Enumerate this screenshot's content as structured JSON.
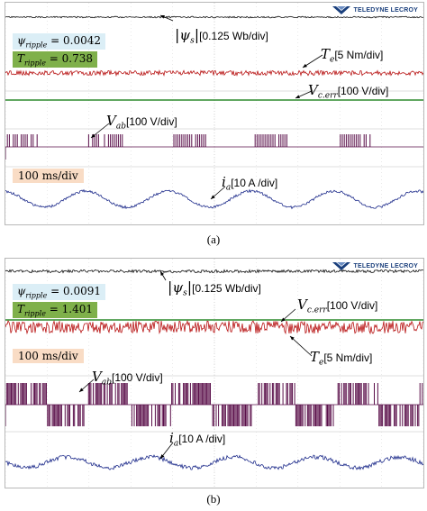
{
  "brand": "TELEDYNE LECROY",
  "panel_a": {
    "psi_ripple_label": "ψ",
    "psi_ripple_sub": "ripple",
    "psi_ripple_value": "= 0.0042",
    "t_ripple_label": "T",
    "t_ripple_sub": "ripple",
    "t_ripple_value": "= 0.738",
    "timebase": "100 ms/div",
    "psi_label": "ψ",
    "psi_sub": "s",
    "psi_scale": "[0.125 Wb/div]",
    "te_label": "T",
    "te_sub": "e",
    "te_scale": "[5 Nm/div]",
    "verr_label": "V",
    "verr_sub": "c.err",
    "verr_scale": "[100 V/div]",
    "vab_label": "V",
    "vab_sub": "ab",
    "vab_scale": "[100 V/div]",
    "ia_label": "i",
    "ia_sub": "a",
    "ia_scale": "[10 A /div]",
    "caption": "(a)"
  },
  "panel_b": {
    "psi_ripple_label": "ψ",
    "psi_ripple_sub": "ripple",
    "psi_ripple_value": "= 0.0091",
    "t_ripple_label": "T",
    "t_ripple_sub": "ripple",
    "t_ripple_value": "= 1.401",
    "timebase": "100 ms/div",
    "psi_label": "ψ",
    "psi_sub": "s",
    "psi_scale": "[0.125 Wb/div]",
    "te_label": "T",
    "te_sub": "e",
    "te_scale": "[5 Nm/div]",
    "verr_label": "V",
    "verr_sub": "c.err",
    "verr_scale": "[100 V/div]",
    "vab_label": "V",
    "vab_sub": "ab",
    "vab_scale": "[100 V/div]",
    "ia_label": "i",
    "ia_sub": "a",
    "ia_scale": "[10 A /div]",
    "caption": "(b)"
  },
  "colors": {
    "flux": "#111111",
    "torque": "#b81414",
    "verr": "#2e8b2e",
    "vab": "#5a0f4a",
    "ia": "#1c2a8a",
    "psi_box": "#dbeef6",
    "t_box": "#7fb04a",
    "timebase_box": "#f9dcc5"
  }
}
